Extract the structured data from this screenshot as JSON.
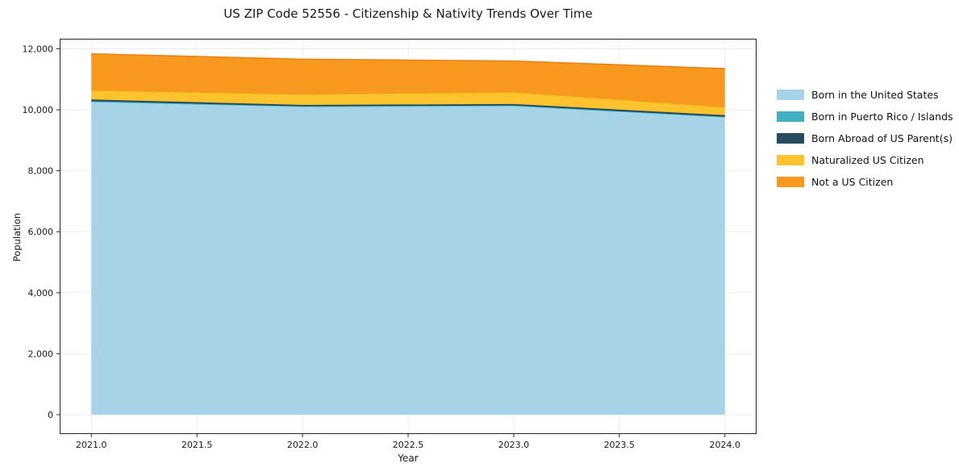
{
  "title": "US ZIP Code 52556 - Citizenship & Nativity Trends Over Time",
  "chart_data": {
    "type": "area",
    "stacked": true,
    "title": "US ZIP Code 52556 - Citizenship & Nativity Trends Over Time",
    "xlabel": "Year",
    "ylabel": "Population",
    "x": [
      2021,
      2022,
      2023,
      2024
    ],
    "series": [
      {
        "name": "Born in the United States",
        "color": "#a6d3e8",
        "edge": "#a6d3e8",
        "values": [
          10250,
          10090,
          10115,
          9745
        ]
      },
      {
        "name": "Born in Puerto Rico / Islands",
        "color": "#45afc2",
        "edge": "#45afc2",
        "values": [
          30,
          25,
          25,
          25
        ]
      },
      {
        "name": "Born Abroad of US Parent(s)",
        "color": "#264d5e",
        "edge": "#264d5e",
        "values": [
          60,
          45,
          50,
          55
        ]
      },
      {
        "name": "Naturalized US Citizen",
        "color": "#fcc32e",
        "edge": "#f0a714",
        "values": [
          305,
          350,
          390,
          265
        ]
      },
      {
        "name": "Not a US Citizen",
        "color": "#f8991f",
        "edge": "#ea8012",
        "values": [
          1190,
          1150,
          1020,
          1260
        ]
      }
    ],
    "stack_totals": [
      11835,
      11660,
      11600,
      11350
    ],
    "xlim": [
      2020.85,
      2024.15
    ],
    "ylim": [
      -635,
      12330
    ],
    "x_ticks": [
      {
        "v": 2021.0,
        "label": "2021.0"
      },
      {
        "v": 2021.5,
        "label": "2021.5"
      },
      {
        "v": 2022.0,
        "label": "2022.0"
      },
      {
        "v": 2022.5,
        "label": "2022.5"
      },
      {
        "v": 2023.0,
        "label": "2023.0"
      },
      {
        "v": 2023.5,
        "label": "2023.5"
      },
      {
        "v": 2024.0,
        "label": "2024.0"
      }
    ],
    "y_ticks": [
      {
        "v": 0,
        "label": "0"
      },
      {
        "v": 2000,
        "label": "2,000"
      },
      {
        "v": 4000,
        "label": "4,000"
      },
      {
        "v": 6000,
        "label": "6,000"
      },
      {
        "v": 8000,
        "label": "8,000"
      },
      {
        "v": 10000,
        "label": "10,000"
      },
      {
        "v": 12000,
        "label": "12,000"
      }
    ],
    "grid": true,
    "grid_color": "#ebebeb",
    "spine_color": "#262626",
    "legend_position": "right-outside"
  },
  "legend_title": ""
}
